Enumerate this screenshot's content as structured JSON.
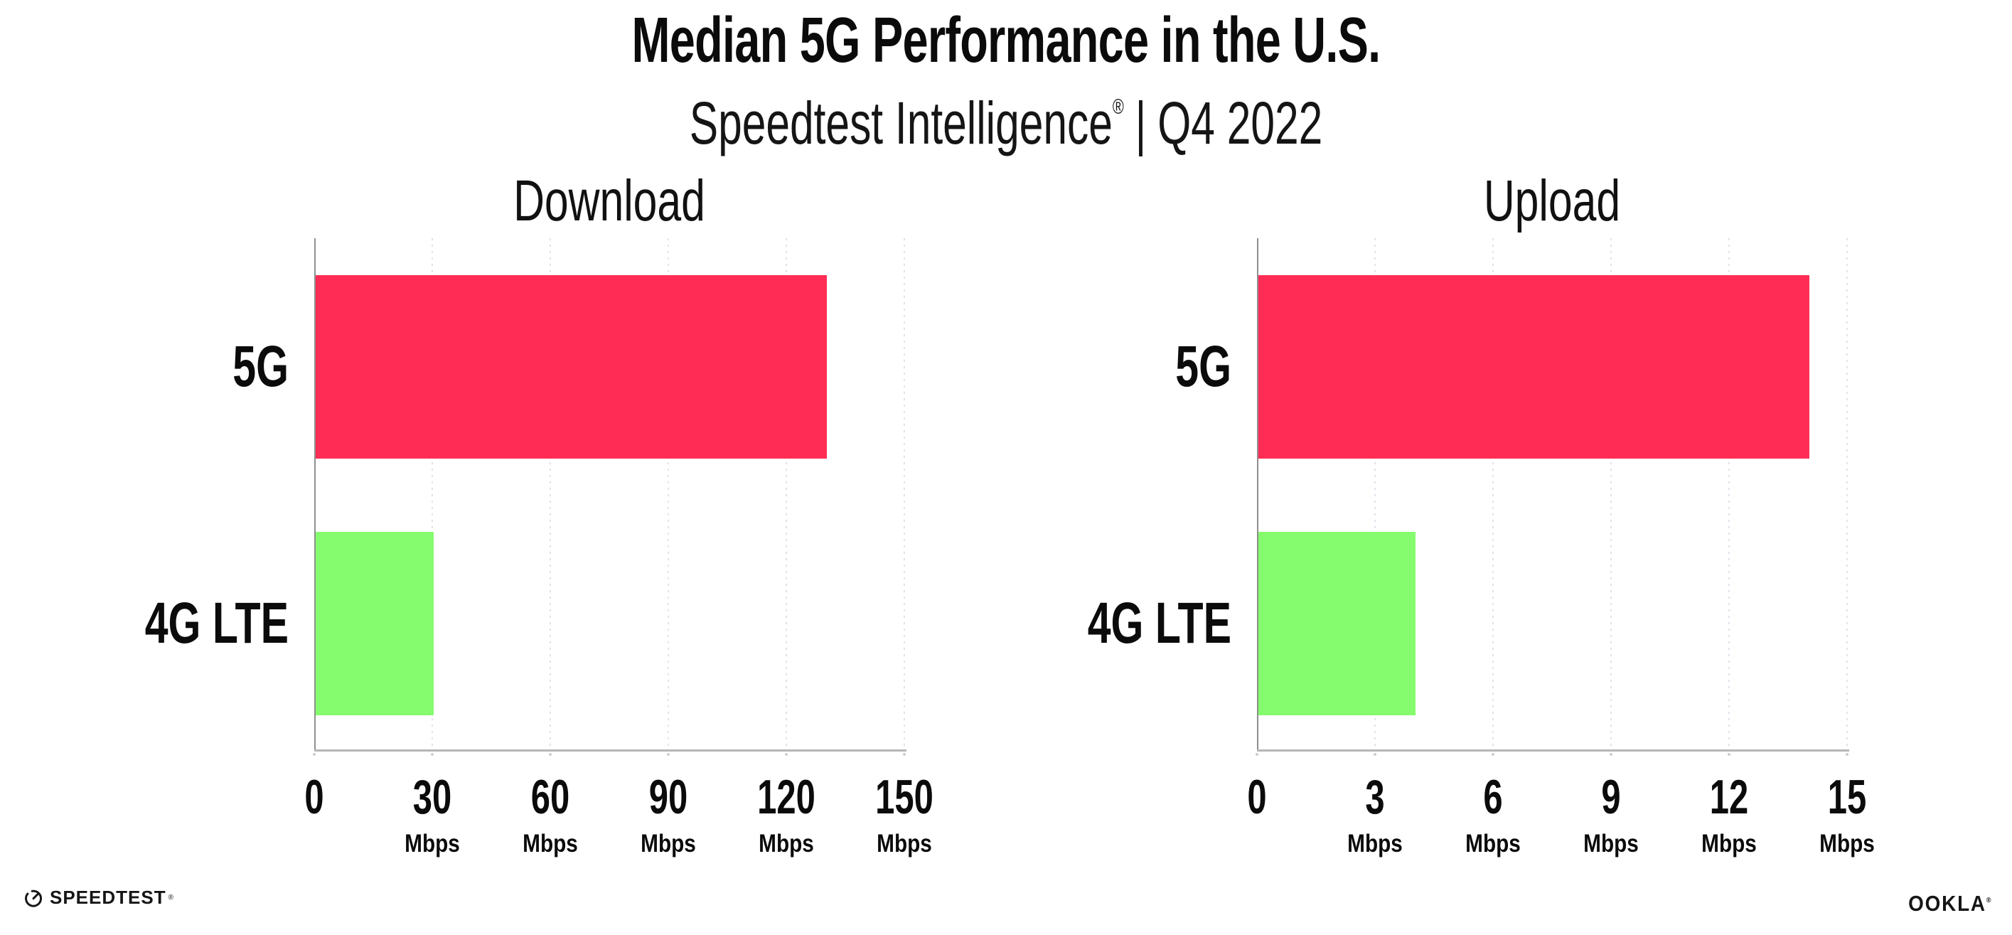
{
  "header": {
    "title": "Median 5G Performance in the U.S.",
    "subtitle": {
      "brand": "Speedtest Intelligence",
      "reg_mark": "®",
      "separator": "|",
      "period": "Q4 2022"
    }
  },
  "colors": {
    "bar_5g": "#ff2d55",
    "bar_4g_lte": "#85fb6e",
    "text": "#0b0b0b",
    "gridline": "#e2e2ec",
    "x_axis": "#b6b6b6",
    "y_axis": "#8f8f8f"
  },
  "chart_data": [
    {
      "type": "bar",
      "orientation": "horizontal",
      "title": "Download",
      "categories": [
        "5G",
        "4G LTE"
      ],
      "values": [
        130,
        30
      ],
      "unit": "Mbps",
      "xlim": [
        0,
        150
      ],
      "xticks": [
        0,
        30,
        60,
        90,
        120,
        150
      ],
      "grid": "vertical-dotted",
      "legend": "none",
      "bar_colors": [
        "#ff2d55",
        "#85fb6e"
      ]
    },
    {
      "type": "bar",
      "orientation": "horizontal",
      "title": "Upload",
      "categories": [
        "5G",
        "4G LTE"
      ],
      "values": [
        14,
        4
      ],
      "unit": "Mbps",
      "xlim": [
        0,
        15
      ],
      "xticks": [
        0,
        3,
        6,
        9,
        12,
        15
      ],
      "grid": "vertical-dotted",
      "legend": "none",
      "bar_colors": [
        "#ff2d55",
        "#85fb6e"
      ]
    }
  ],
  "footer": {
    "speedtest": {
      "label": "SPEEDTEST",
      "mark": "®",
      "icon": "speedtest-gauge-icon"
    },
    "ookla": {
      "label": "OOKLA",
      "mark": "®"
    }
  }
}
